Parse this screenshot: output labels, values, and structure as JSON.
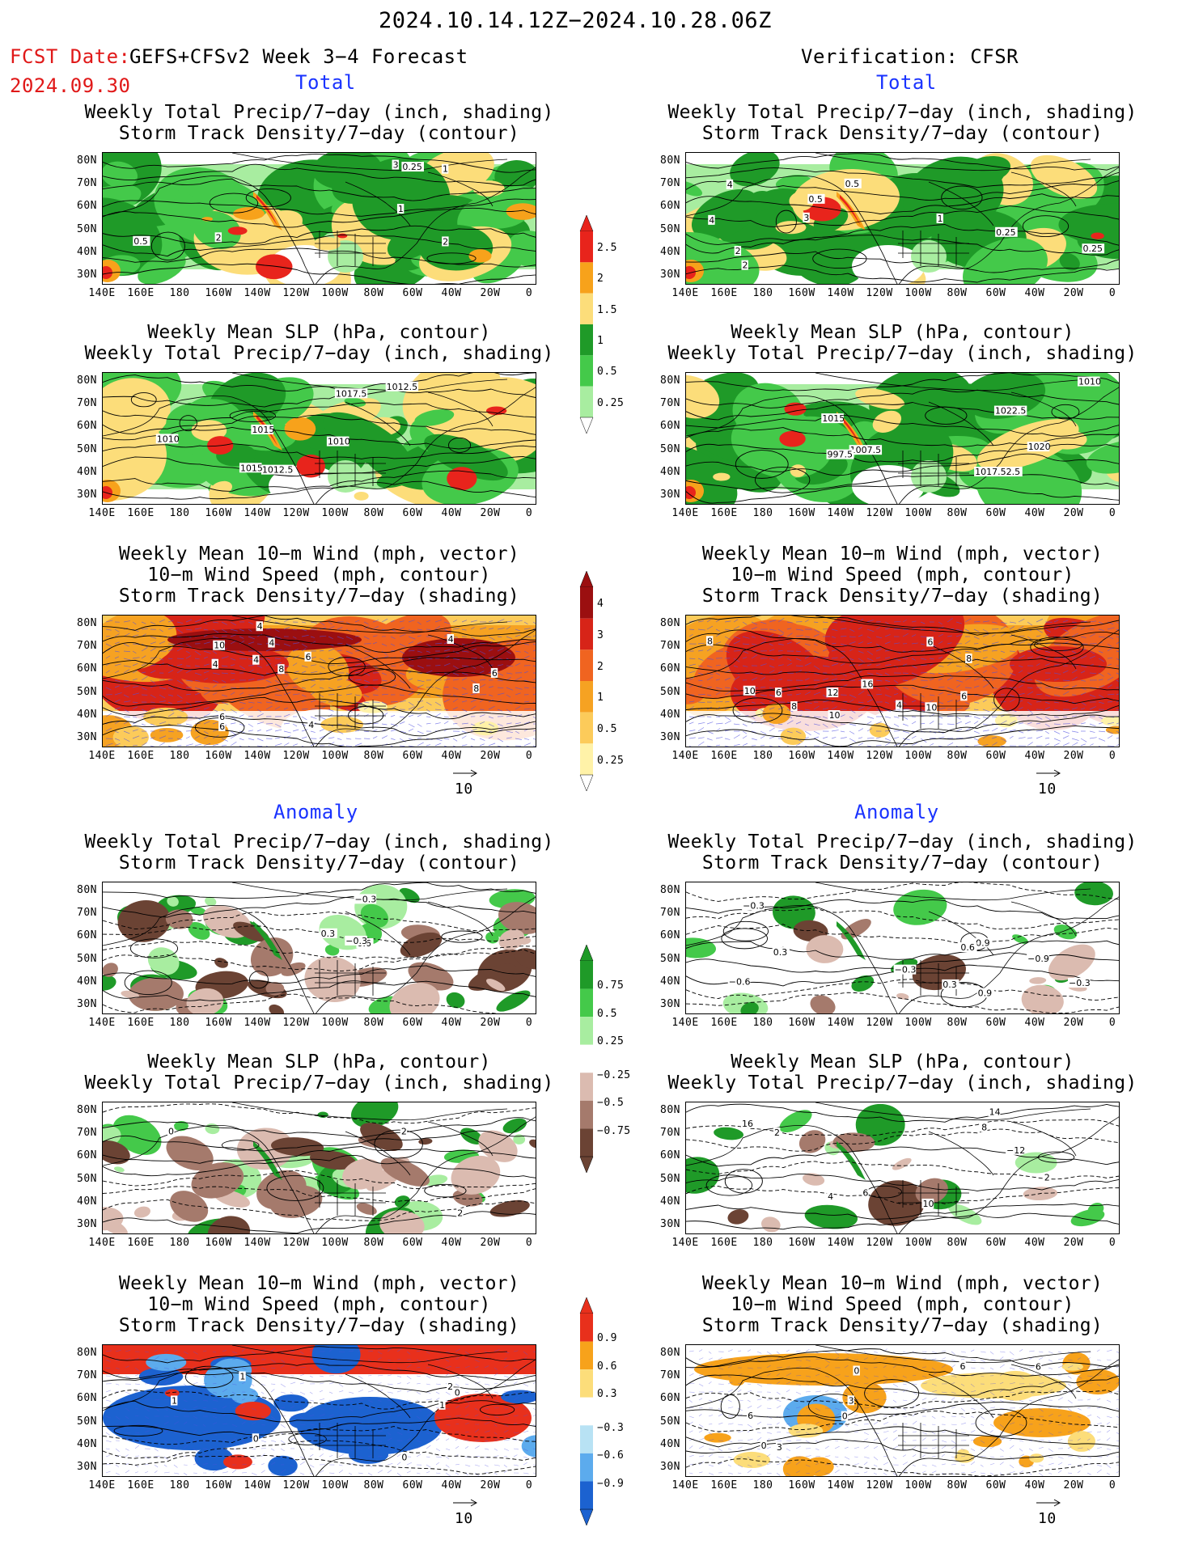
{
  "header": {
    "main_title": "2024.10.14.12Z−2024.10.28.06Z",
    "fcst_label": "FCST Date:",
    "model_title": "GEFS+CFSv2 Week 3−4 Forecast",
    "fcst_date": "2024.09.30",
    "verification_title": "Verification: CFSR"
  },
  "sections": {
    "total": "Total",
    "anomaly": "Anomaly"
  },
  "panel_titles": {
    "precip_storm": [
      "Weekly Total Precip/7−day (inch, shading)",
      "Storm Track Density/7−day (contour)"
    ],
    "slp_precip": [
      "Weekly Mean SLP (hPa, contour)",
      "Weekly Total Precip/7−day (inch, shading)"
    ],
    "wind_storm": [
      "Weekly Mean 10−m Wind (mph, vector)",
      "10−m Wind Speed (mph, contour)",
      "Storm Track Density/7−day (shading)"
    ]
  },
  "axes": {
    "lat_labels": [
      "80N",
      "70N",
      "60N",
      "50N",
      "40N",
      "30N"
    ],
    "lon_labels": [
      "140E",
      "160E",
      "180",
      "160W",
      "140W",
      "120W",
      "100W",
      "80W",
      "60W",
      "40W",
      "20W",
      "0"
    ]
  },
  "vector_reference": "10",
  "colorbars": {
    "precip_total": {
      "labels": [
        "2.5",
        "2",
        "1.5",
        "1",
        "0.5",
        "0.25"
      ],
      "colors": [
        "#e8241c",
        "#f7a21b",
        "#fcdd7a",
        "#1f9a28",
        "#44c94a",
        "#a8eda0"
      ]
    },
    "storm_total": {
      "labels": [
        "4",
        "3",
        "2",
        "1",
        "0.5",
        "0.25"
      ],
      "colors": [
        "#9b0f10",
        "#d72418",
        "#f06420",
        "#f6a222",
        "#fccb5a",
        "#fff2a8"
      ]
    },
    "precip_anom": {
      "labels": [
        "0.75",
        "0.5",
        "0.25",
        "−0.25",
        "−0.5",
        "−0.75"
      ],
      "colors": [
        "#1f9a28",
        "#44c94a",
        "#a8eda0",
        "#ffffff",
        "#dbbbb0",
        "#a57a6c",
        "#6b4334"
      ]
    },
    "storm_anom": {
      "labels": [
        "0.9",
        "0.6",
        "0.3",
        "−0.3",
        "−0.6",
        "−0.9"
      ],
      "colors": [
        "#e8301c",
        "#f7a21b",
        "#fcdd7a",
        "#ffffff",
        "#b8e2f4",
        "#5cabed",
        "#1c62d0"
      ]
    }
  },
  "map_colors": {
    "precip": [
      "#a8eda0",
      "#44c94a",
      "#1f9a28",
      "#fcdd7a",
      "#f7a21b",
      "#e8241c"
    ],
    "storm": [
      "#fff2a8",
      "#fccb5a",
      "#f6a222",
      "#f06420",
      "#d72418",
      "#9b0f10"
    ],
    "anom_wet": [
      "#a8eda0",
      "#44c94a",
      "#1f9a28"
    ],
    "anom_dry": [
      "#dbbbb0",
      "#a57a6c",
      "#6b4334"
    ],
    "storm_anom_pos": [
      "#fcdd7a",
      "#f7a21b",
      "#e8301c"
    ],
    "storm_anom_neg": [
      "#b8e2f4",
      "#5cabed",
      "#1c62d0"
    ]
  },
  "panels": {
    "f1": {
      "labels": [
        "2",
        "1",
        "3",
        "1",
        "2",
        "0.5",
        "0.25"
      ]
    },
    "v1": {
      "labels": [
        "3",
        "4",
        "0.5",
        "2",
        "1",
        "2",
        "4",
        "0.25",
        "0.5",
        "0.25"
      ]
    },
    "f2": {
      "labels": [
        "1012.5",
        "1010",
        "1015",
        "1015",
        "1010",
        "1012.5",
        "1017.5"
      ]
    },
    "v2": {
      "labels": [
        "1007.5",
        "997.5",
        "1010",
        "1017.52.5",
        "1015",
        "1022.5",
        "1020"
      ]
    },
    "f3": {
      "labels": [
        "4",
        "4",
        "8",
        "6",
        "4",
        "4",
        "4",
        "10",
        "6",
        "4",
        "6",
        "8",
        "6"
      ]
    },
    "v3": {
      "labels": [
        "4",
        "6",
        "10",
        "10",
        "8",
        "16",
        "6",
        "12",
        "8",
        "10",
        "8",
        "6"
      ]
    },
    "f4": {
      "labels": [
        "−0.3",
        "0.6",
        "0.3",
        "−0.3"
      ]
    },
    "v4": {
      "labels": [
        "0.3",
        "−0.9",
        "0.3",
        "−0.3",
        "0.9",
        "−0.6",
        "−0.3",
        "−0.3",
        "0.9",
        "0.6"
      ]
    },
    "f5": {
      "labels": [
        "2",
        "2",
        "0"
      ]
    },
    "v5": {
      "labels": [
        "14",
        "16",
        "−12",
        "10",
        "6",
        "8",
        "4",
        "2",
        "2"
      ]
    },
    "f6": {
      "labels": [
        "2",
        "1",
        "0",
        "1",
        "0",
        "1",
        "0"
      ]
    },
    "v6": {
      "labels": [
        "6",
        "0",
        "0",
        "3",
        "6",
        "3",
        "0",
        "6"
      ]
    }
  }
}
